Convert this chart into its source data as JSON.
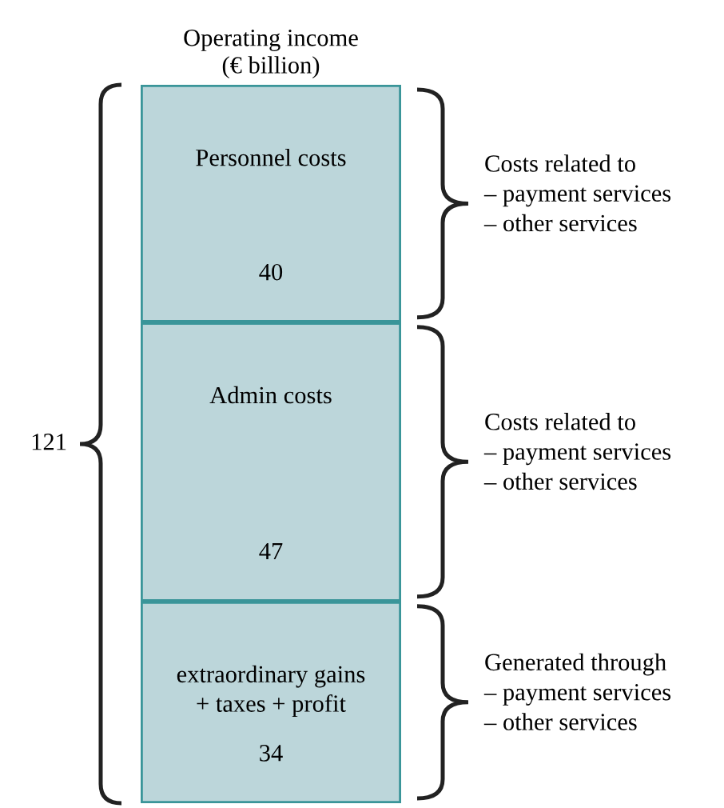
{
  "chart_data": {
    "type": "bar",
    "title": "Operating income\n(€ billion)",
    "stacked": true,
    "data_labels": true,
    "categories": [
      null
    ],
    "series": [
      {
        "name": "extraordinary gains\n+ taxes + profit",
        "color": "#bcd6da",
        "values": [
          34
        ]
      },
      {
        "name": "Admin costs",
        "color": "#bcd6da",
        "values": [
          47
        ]
      },
      {
        "name": "Personnel costs",
        "color": "#bcd6da",
        "values": [
          40
        ]
      }
    ],
    "totals": [
      "121"
    ],
    "annotations": [
      "Costs related to\n– payment services\n– other services",
      "Costs related to\n– payment services\n– other services",
      "Generated through\n– payment services\n– other services"
    ]
  }
}
